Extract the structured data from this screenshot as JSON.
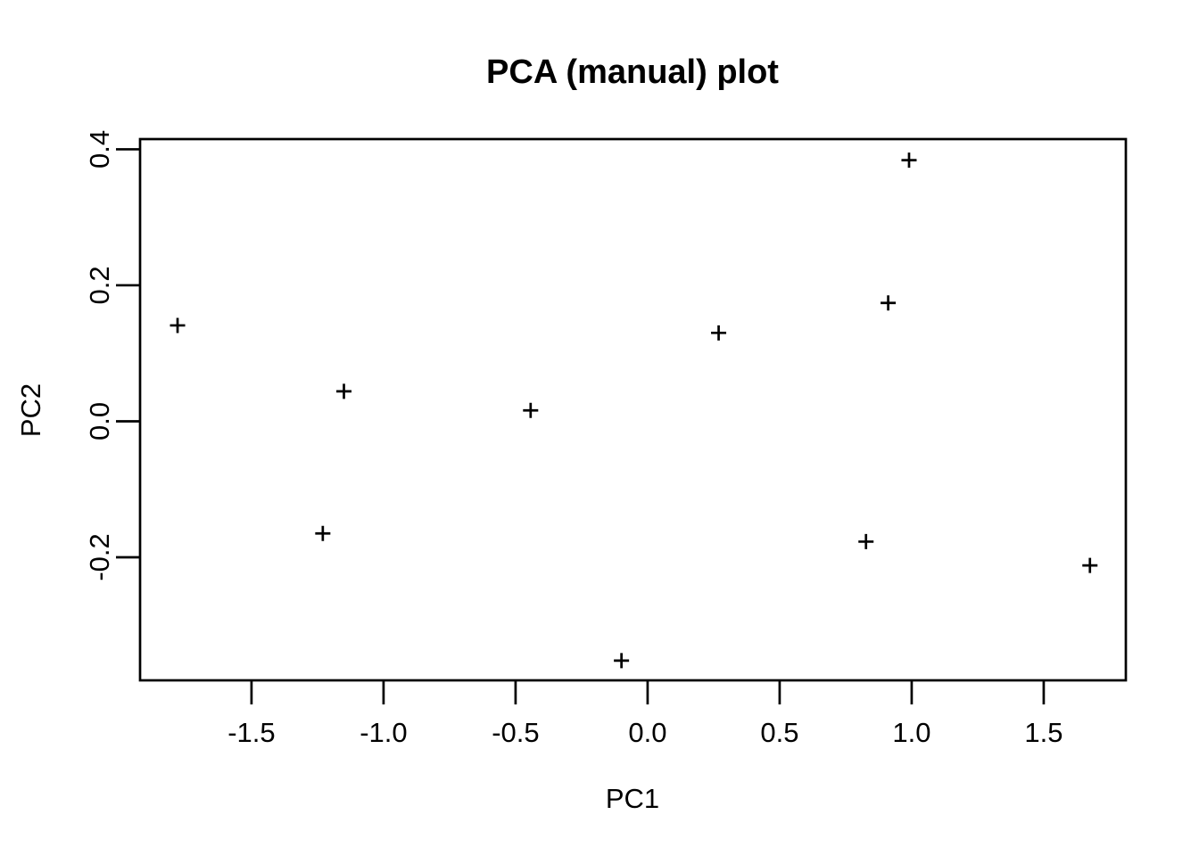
{
  "chart_data": {
    "type": "scatter",
    "title": "PCA (manual) plot",
    "xlabel": "PC1",
    "ylabel": "PC2",
    "marker_symbol": "plus",
    "marker_color": "#000000",
    "axis_color": "#000000",
    "background_color": "#ffffff",
    "grid": false,
    "legend": false,
    "xlim": [
      -1.922,
      1.811
    ],
    "ylim": [
      -0.381,
      0.415
    ],
    "x_ticks": {
      "values": [
        -1.5,
        -1.0,
        -0.5,
        0.0,
        0.5,
        1.0,
        1.5
      ],
      "labels": [
        "-1.5",
        "-1.0",
        "-0.5",
        "0.0",
        "0.5",
        "1.0",
        "1.5"
      ]
    },
    "y_ticks": {
      "values": [
        -0.2,
        0.0,
        0.2,
        0.4
      ],
      "labels": [
        "-0.2",
        "0.0",
        "0.2",
        "0.4"
      ]
    },
    "points": [
      {
        "x": -1.78,
        "y": 0.141
      },
      {
        "x": -1.23,
        "y": -0.165
      },
      {
        "x": -1.15,
        "y": 0.044
      },
      {
        "x": -0.443,
        "y": 0.016
      },
      {
        "x": -0.099,
        "y": -0.352
      },
      {
        "x": 0.269,
        "y": 0.13
      },
      {
        "x": 0.827,
        "y": -0.177
      },
      {
        "x": 0.911,
        "y": 0.174
      },
      {
        "x": 0.99,
        "y": 0.384
      },
      {
        "x": 1.675,
        "y": -0.212
      }
    ]
  }
}
